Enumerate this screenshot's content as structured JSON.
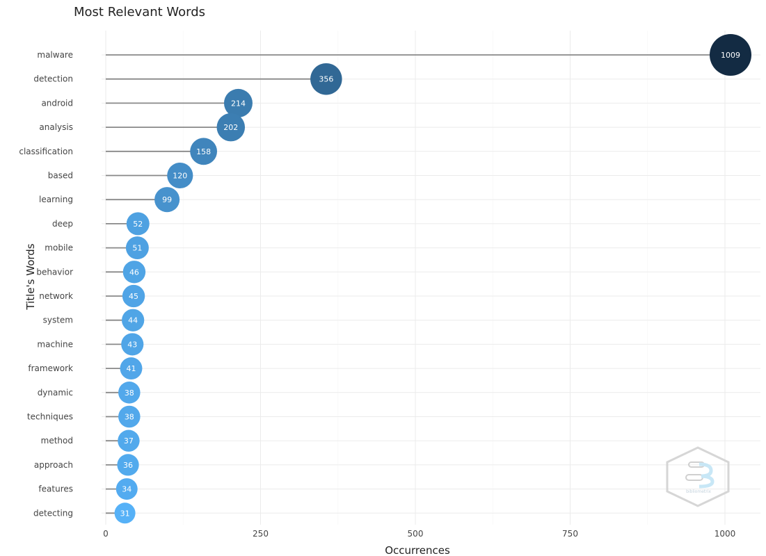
{
  "chart_data": {
    "type": "scatter",
    "title": "Most Relevant Words",
    "xlabel": "Occurrences",
    "ylabel": "Title's Words",
    "xlim": [
      0,
      1060
    ],
    "xticks": [
      0,
      250,
      500,
      750,
      1000
    ],
    "grid": true,
    "categories": [
      "malware",
      "detection",
      "android",
      "analysis",
      "classification",
      "based",
      "learning",
      "deep",
      "mobile",
      "behavior",
      "network",
      "system",
      "machine",
      "framework",
      "dynamic",
      "techniques",
      "method",
      "approach",
      "features",
      "detecting"
    ],
    "values": [
      1009,
      356,
      214,
      202,
      158,
      120,
      99,
      52,
      51,
      46,
      45,
      44,
      43,
      41,
      38,
      38,
      37,
      36,
      34,
      31
    ],
    "color_scale": [
      "#132b43",
      "#56b1f7"
    ]
  },
  "watermark": {
    "text": "bibliometrix"
  }
}
